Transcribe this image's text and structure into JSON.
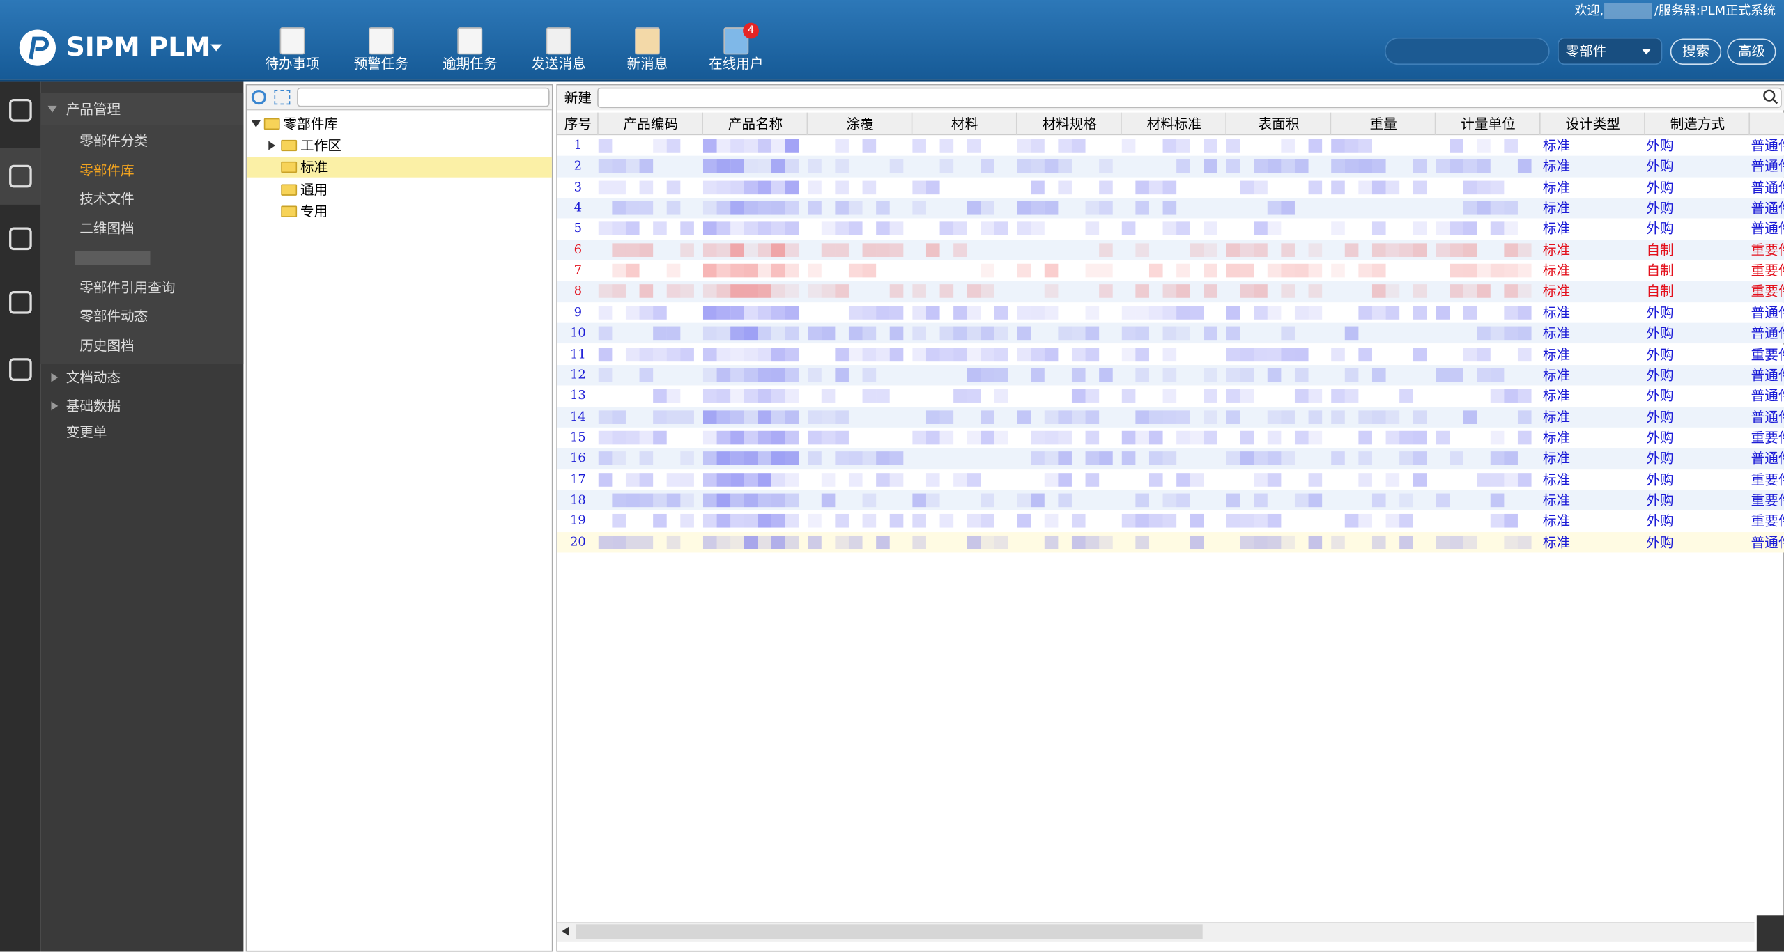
{
  "header": {
    "logo": "SIPM PLM",
    "nav": [
      "待办事项",
      "预警任务",
      "逾期任务",
      "发送消息",
      "新消息",
      "在线用户"
    ],
    "online_badge": 4,
    "welcome": "欢迎,",
    "server": "/服务器:PLM正式系统",
    "search_select": "零部件",
    "search_button": "搜索",
    "advanced_button": "高级"
  },
  "sidebar": {
    "groups": [
      {
        "label": "产品管理",
        "items": [
          "零部件分类",
          "零部件库",
          "技术文件",
          "二维图档",
          null,
          "零部件引用查询",
          "零部件动态",
          "历史图档"
        ]
      },
      {
        "label": "文档动态"
      },
      {
        "label": "基础数据"
      },
      {
        "label": "变更单"
      }
    ],
    "active_item": 1
  },
  "tree": {
    "root": "零部件库",
    "children": [
      "工作区",
      "标准",
      "通用",
      "专用"
    ],
    "selected": 1
  },
  "toolbar": {
    "new": "新建"
  },
  "table": {
    "columns": [
      "序号",
      "产品编码",
      "产品名称",
      "涂覆",
      "材料",
      "材料规格",
      "材料标准",
      "表面积",
      "重量",
      "计量单位",
      "设计类型",
      "制造方式"
    ],
    "rows": [
      {
        "no": 1,
        "design": "标准",
        "make": "外购",
        "kind": "普通件",
        "color": "#1b1bd6"
      },
      {
        "no": 2,
        "design": "标准",
        "make": "外购",
        "kind": "普通件",
        "color": "#1b1bd6"
      },
      {
        "no": 3,
        "design": "标准",
        "make": "外购",
        "kind": "普通件",
        "color": "#1b1bd6"
      },
      {
        "no": 4,
        "design": "标准",
        "make": "外购",
        "kind": "普通件",
        "color": "#1b1bd6"
      },
      {
        "no": 5,
        "design": "标准",
        "make": "外购",
        "kind": "普通件",
        "color": "#1b1bd6"
      },
      {
        "no": 6,
        "design": "标准",
        "make": "自制",
        "kind": "重要件",
        "color": "#e3101c"
      },
      {
        "no": 7,
        "design": "标准",
        "make": "自制",
        "kind": "重要件",
        "color": "#e3101c"
      },
      {
        "no": 8,
        "design": "标准",
        "make": "自制",
        "kind": "重要件",
        "color": "#e3101c"
      },
      {
        "no": 9,
        "design": "标准",
        "make": "外购",
        "kind": "普通件",
        "color": "#1b1bd6"
      },
      {
        "no": 10,
        "design": "标准",
        "make": "外购",
        "kind": "普通件",
        "color": "#1b1bd6"
      },
      {
        "no": 11,
        "design": "标准",
        "make": "外购",
        "kind": "重要件",
        "color": "#1b1bd6"
      },
      {
        "no": 12,
        "design": "标准",
        "make": "外购",
        "kind": "普通件",
        "color": "#1b1bd6"
      },
      {
        "no": 13,
        "design": "标准",
        "make": "外购",
        "kind": "普通件",
        "color": "#1b1bd6"
      },
      {
        "no": 14,
        "design": "标准",
        "make": "外购",
        "kind": "普通件",
        "color": "#1b1bd6"
      },
      {
        "no": 15,
        "design": "标准",
        "make": "外购",
        "kind": "重要件",
        "color": "#1b1bd6"
      },
      {
        "no": 16,
        "design": "标准",
        "make": "外购",
        "kind": "普通件",
        "color": "#1b1bd6"
      },
      {
        "no": 17,
        "design": "标准",
        "make": "外购",
        "kind": "重要件",
        "color": "#1b1bd6"
      },
      {
        "no": 18,
        "design": "标准",
        "make": "外购",
        "kind": "重要件",
        "color": "#1b1bd6"
      },
      {
        "no": 19,
        "design": "标准",
        "make": "外购",
        "kind": "重要件",
        "color": "#1b1bd6"
      },
      {
        "no": 20,
        "design": "标准",
        "make": "外购",
        "kind": "普通件",
        "color": "#1b1bd6"
      }
    ]
  }
}
